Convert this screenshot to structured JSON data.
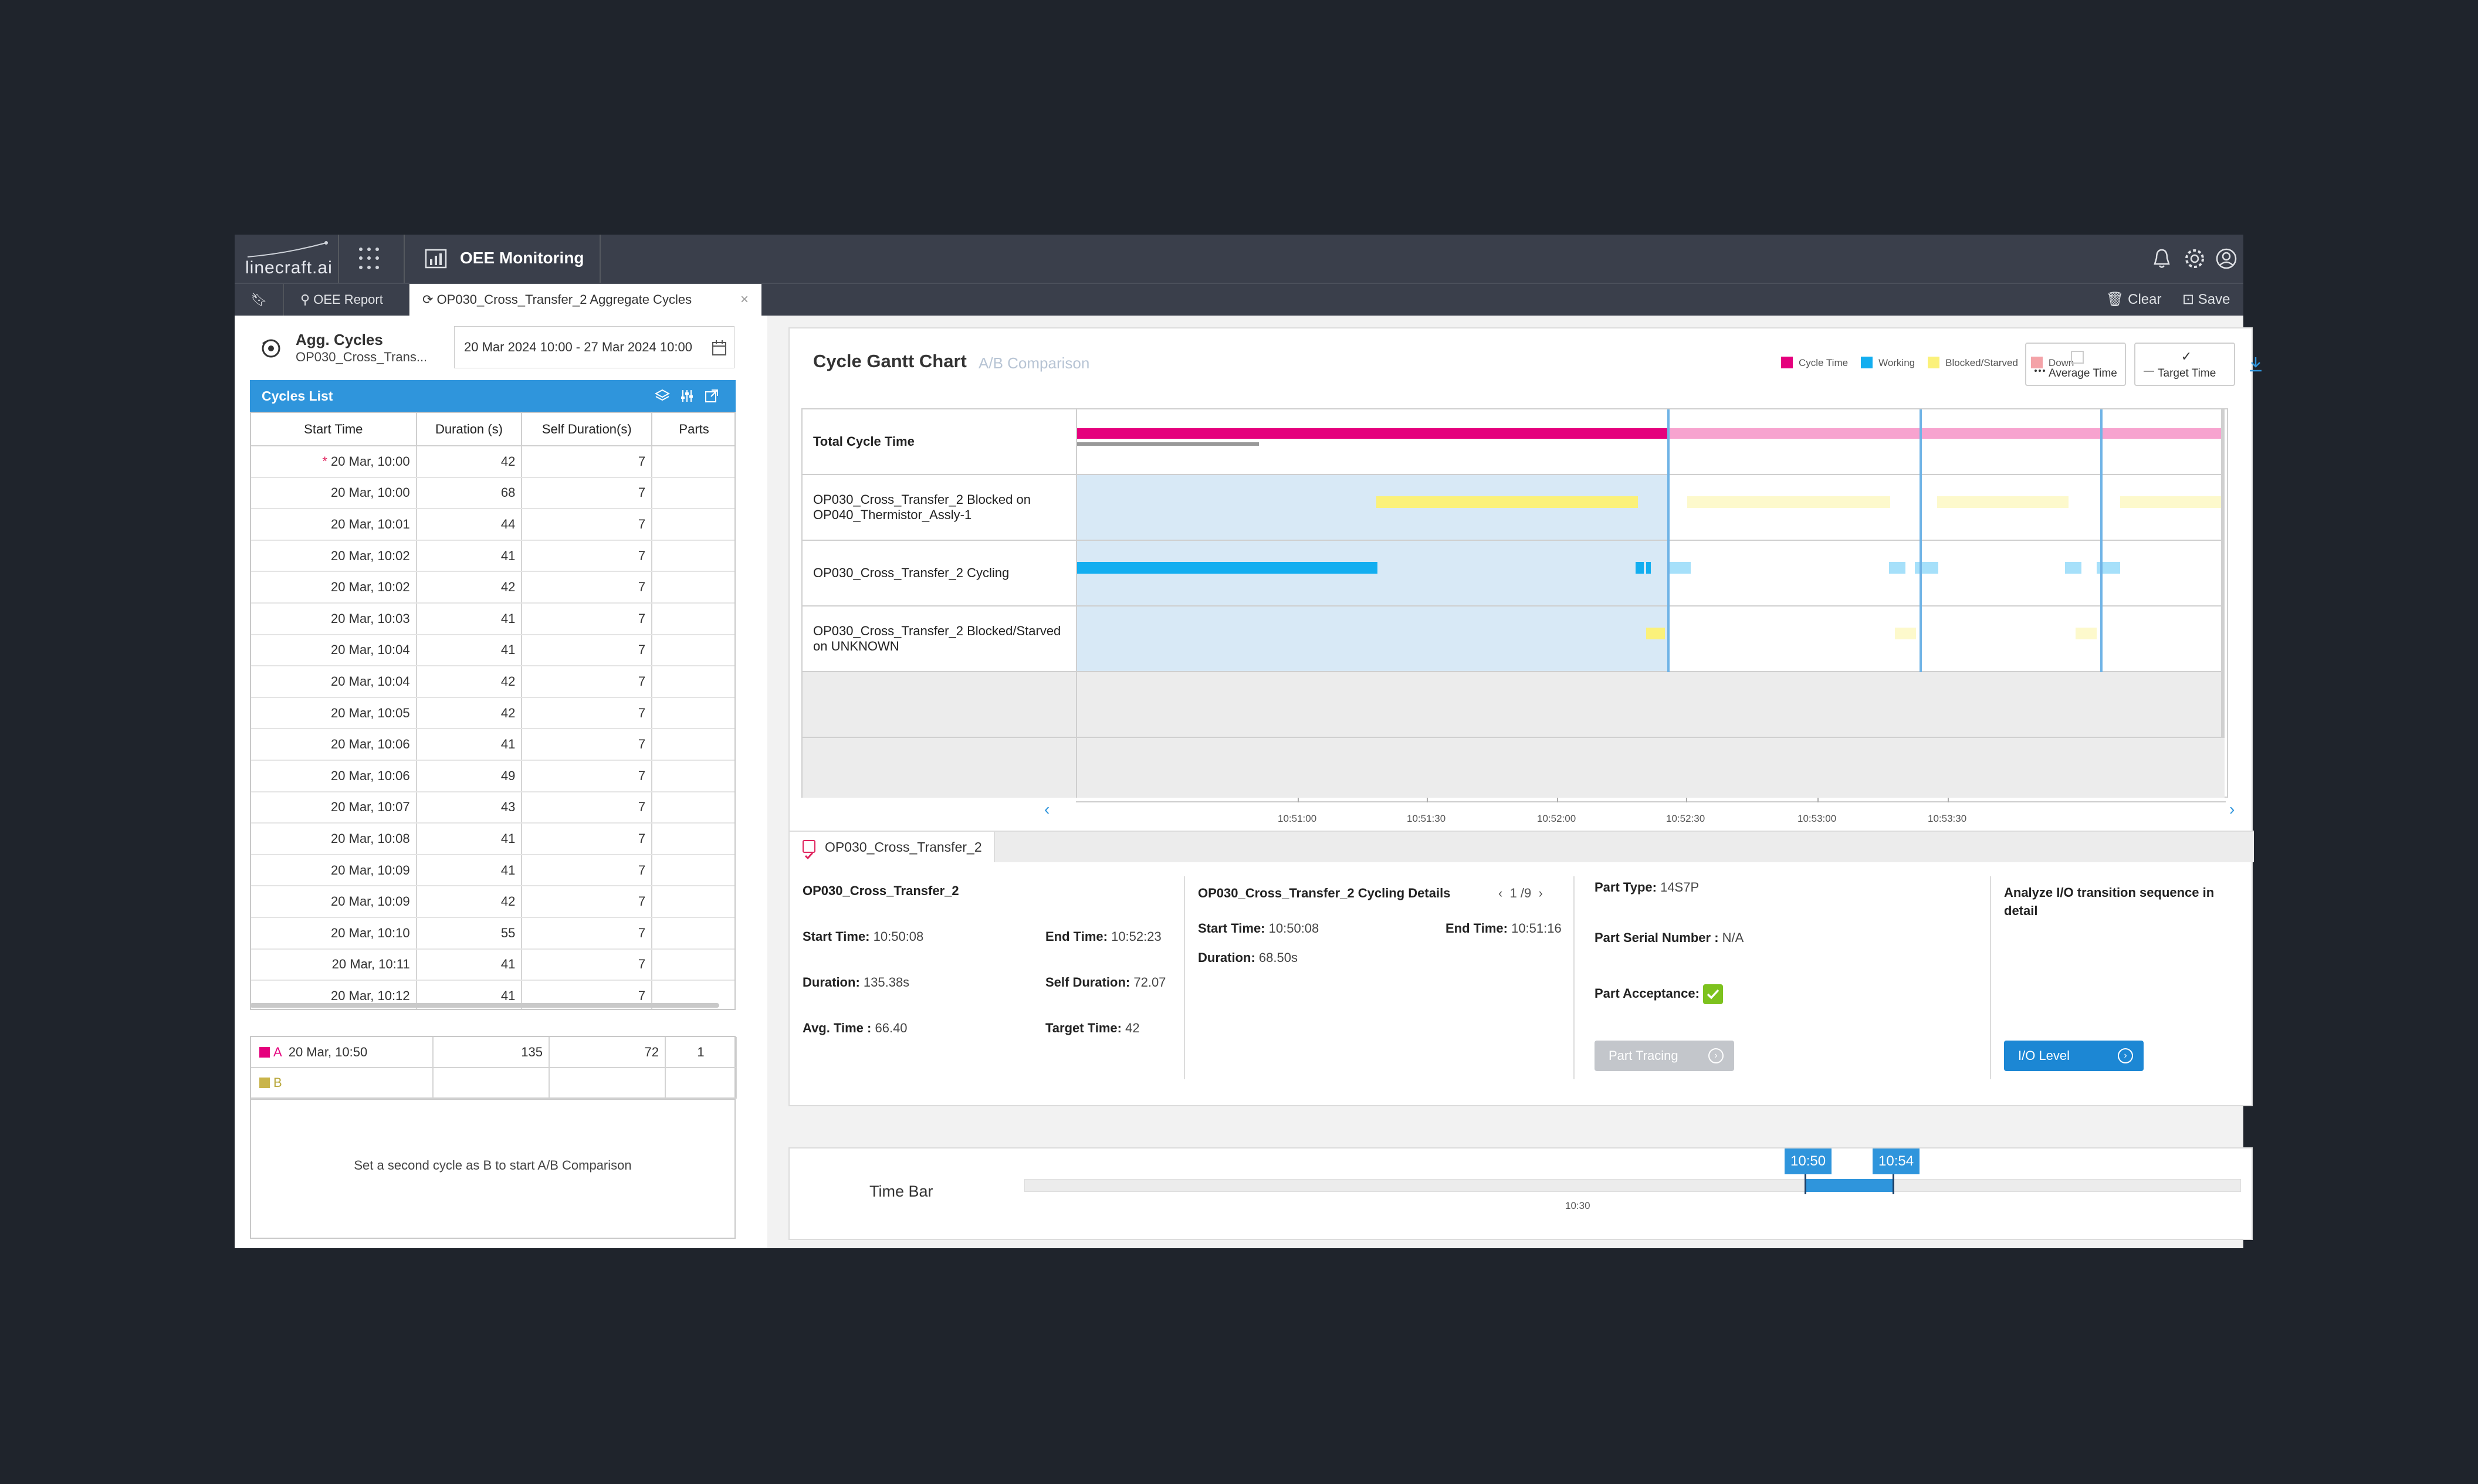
{
  "header": {
    "logo_text": "linecraft.ai",
    "module_title": "OEE Monitoring",
    "icons": [
      "bell-icon",
      "gear-icon",
      "user-circle-icon"
    ]
  },
  "tabs": {
    "oee_report": "OEE Report",
    "active_tab": "OP030_Cross_Transfer_2 Aggregate Cycles",
    "clear": "Clear",
    "save": "Save"
  },
  "left": {
    "title": "Agg. Cycles",
    "subtitle": "OP030_Cross_Trans...",
    "date_range": "20 Mar 2024 10:00 - 27 Mar 2024 10:00",
    "cycles_list_title": "Cycles List",
    "columns": [
      "Start Time",
      "Duration (s)",
      "Self Duration(s)",
      "Parts"
    ],
    "rows": [
      {
        "start": "20 Mar, 10:00",
        "duration": "42",
        "self": "7",
        "parts": "",
        "marked": true
      },
      {
        "start": "20 Mar, 10:00",
        "duration": "68",
        "self": "7",
        "parts": ""
      },
      {
        "start": "20 Mar, 10:01",
        "duration": "44",
        "self": "7",
        "parts": ""
      },
      {
        "start": "20 Mar, 10:02",
        "duration": "41",
        "self": "7",
        "parts": ""
      },
      {
        "start": "20 Mar, 10:02",
        "duration": "42",
        "self": "7",
        "parts": ""
      },
      {
        "start": "20 Mar, 10:03",
        "duration": "41",
        "self": "7",
        "parts": ""
      },
      {
        "start": "20 Mar, 10:04",
        "duration": "41",
        "self": "7",
        "parts": ""
      },
      {
        "start": "20 Mar, 10:04",
        "duration": "42",
        "self": "7",
        "parts": ""
      },
      {
        "start": "20 Mar, 10:05",
        "duration": "42",
        "self": "7",
        "parts": ""
      },
      {
        "start": "20 Mar, 10:06",
        "duration": "41",
        "self": "7",
        "parts": ""
      },
      {
        "start": "20 Mar, 10:06",
        "duration": "49",
        "self": "7",
        "parts": ""
      },
      {
        "start": "20 Mar, 10:07",
        "duration": "43",
        "self": "7",
        "parts": ""
      },
      {
        "start": "20 Mar, 10:08",
        "duration": "41",
        "self": "7",
        "parts": ""
      },
      {
        "start": "20 Mar, 10:09",
        "duration": "41",
        "self": "7",
        "parts": ""
      },
      {
        "start": "20 Mar, 10:09",
        "duration": "42",
        "self": "7",
        "parts": ""
      },
      {
        "start": "20 Mar, 10:10",
        "duration": "55",
        "self": "7",
        "parts": ""
      },
      {
        "start": "20 Mar, 10:11",
        "duration": "41",
        "self": "7",
        "parts": ""
      },
      {
        "start": "20 Mar, 10:12",
        "duration": "41",
        "self": "7",
        "parts": ""
      }
    ],
    "ab": {
      "a_label": "A",
      "a_start": "20 Mar, 10:50",
      "a_duration": "135",
      "a_self": "72",
      "a_parts": "1",
      "b_label": "B",
      "a_color": "#e5007d",
      "b_color": "#c9b44a",
      "message": "Set a second cycle as B to start A/B Comparison"
    }
  },
  "gantt": {
    "title": "Cycle Gantt Chart",
    "subtitle": "A/B Comparison",
    "legend": [
      {
        "label": "Cycle Time",
        "color": "#e5007d"
      },
      {
        "label": "Working",
        "color": "#13aef0"
      },
      {
        "label": "Blocked/Starved",
        "color": "#fbf17a"
      },
      {
        "label": "Down",
        "color": "#f4a3a8"
      }
    ],
    "average_time": "Average Time",
    "target_time": "Target Time",
    "rows": [
      "Total Cycle Time",
      "OP030_Cross_Transfer_2 Blocked on OP040_Thermistor_Assly-1",
      "OP030_Cross_Transfer_2 Cycling",
      "OP030_Cross_Transfer_2 Blocked/Starved on UNKNOWN"
    ],
    "ticks": [
      "10:51:00",
      "10:51:30",
      "10:52:00",
      "10:52:30",
      "10:53:00",
      "10:53:30"
    ]
  },
  "detail": {
    "tab_label": "OP030_Cross_Transfer_2",
    "col1": {
      "title": "OP030_Cross_Transfer_2",
      "start_label": "Start Time:",
      "start": "10:50:08",
      "end_label": "End Time:",
      "end": "10:52:23",
      "duration_label": "Duration:",
      "duration": "135.38s",
      "self_label": "Self Duration:",
      "self": "72.07",
      "avg_label": "Avg. Time :",
      "avg": "66.40",
      "target_label": "Target Time:",
      "target": "42"
    },
    "col2": {
      "title": "OP030_Cross_Transfer_2 Cycling Details",
      "pager": "1 /9",
      "start_label": "Start Time:",
      "start": "10:50:08",
      "end_label": "End Time:",
      "end": "10:51:16",
      "duration_label": "Duration:",
      "duration": "68.50s"
    },
    "col3": {
      "part_type_label": "Part Type:",
      "part_type": "14S7P",
      "serial_label": "Part Serial Number :",
      "serial": "N/A",
      "acceptance_label": "Part Acceptance:",
      "part_tracing": "Part Tracing"
    },
    "col4": {
      "title": "Analyze I/O transition sequence in detail",
      "io_level": "I/O Level"
    }
  },
  "timebar": {
    "label": "Time Bar",
    "from": "10:50",
    "to": "10:54",
    "tick": "10:30"
  }
}
